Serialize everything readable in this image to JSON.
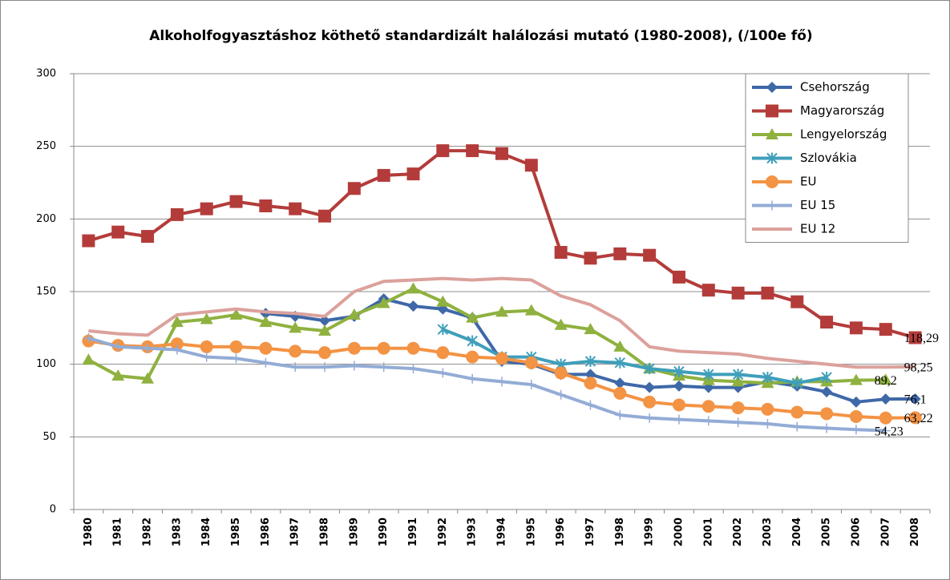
{
  "chart_data": {
    "type": "line",
    "title": "Alkoholfogyasztáshoz köthető standardizált halálozási mutató (1980-2008), (/100e fő)",
    "categories": [
      "1980",
      "1981",
      "1982",
      "1983",
      "1984",
      "1985",
      "1986",
      "1987",
      "1988",
      "1989",
      "1990",
      "1991",
      "1992",
      "1993",
      "1994",
      "1995",
      "1996",
      "1997",
      "1998",
      "1999",
      "2000",
      "2001",
      "2002",
      "2003",
      "2004",
      "2005",
      "2006",
      "2007",
      "2008"
    ],
    "ylim": [
      0,
      300
    ],
    "yticks": [
      0,
      50,
      100,
      150,
      200,
      250,
      300
    ],
    "grid": true,
    "legend": "top-right",
    "series": [
      {
        "name": "Csehország",
        "color": "#3e68a8",
        "marker": "diamond",
        "values": [
          null,
          null,
          null,
          null,
          null,
          null,
          135,
          133,
          130,
          133,
          145,
          140,
          138,
          132,
          102,
          100,
          93,
          93,
          87,
          84,
          85,
          84,
          84,
          88,
          85,
          81,
          74,
          76,
          76.1
        ],
        "value_labels": [
          null,
          null,
          null,
          null,
          null,
          null,
          null,
          null,
          null,
          null,
          null,
          null,
          null,
          null,
          null,
          null,
          null,
          null,
          null,
          null,
          null,
          null,
          null,
          null,
          null,
          null,
          null,
          null,
          "76,1"
        ]
      },
      {
        "name": "Magyarország",
        "color": "#b33c3a",
        "marker": "square",
        "values": [
          185,
          191,
          188,
          203,
          207,
          212,
          209,
          207,
          202,
          221,
          230,
          231,
          247,
          247,
          245,
          237,
          177,
          173,
          176,
          175,
          160,
          151,
          149,
          149,
          143,
          129,
          125,
          124,
          118.29
        ],
        "value_labels": [
          null,
          null,
          null,
          null,
          null,
          null,
          null,
          null,
          null,
          null,
          null,
          null,
          null,
          null,
          null,
          null,
          null,
          null,
          null,
          null,
          null,
          null,
          null,
          null,
          null,
          null,
          null,
          null,
          "118,29"
        ]
      },
      {
        "name": "Lengyelország",
        "color": "#8fb13f",
        "marker": "triangle",
        "values": [
          103,
          92,
          90,
          129,
          131,
          134,
          129,
          125,
          123,
          134,
          142,
          152,
          143,
          132,
          136,
          137,
          127,
          124,
          112,
          97,
          92,
          89,
          88,
          87,
          88,
          88,
          89,
          89.2,
          null
        ],
        "value_labels": [
          null,
          null,
          null,
          null,
          null,
          null,
          null,
          null,
          null,
          null,
          null,
          null,
          null,
          null,
          null,
          null,
          null,
          null,
          null,
          null,
          null,
          null,
          null,
          null,
          null,
          null,
          null,
          "89,2",
          null
        ]
      },
      {
        "name": "Szlovákia",
        "color": "#3f9fba",
        "marker": "asterisk",
        "values": [
          null,
          null,
          null,
          null,
          null,
          null,
          null,
          null,
          null,
          null,
          null,
          null,
          124,
          116,
          105,
          105,
          100,
          102,
          101,
          97,
          95,
          93,
          93,
          91,
          87,
          91,
          null,
          null,
          null
        ]
      },
      {
        "name": "EU",
        "color": "#f39344",
        "marker": "circle",
        "values": [
          116,
          113,
          112,
          114,
          112,
          112,
          111,
          109,
          108,
          111,
          111,
          111,
          108,
          105,
          104,
          101,
          94,
          87,
          80,
          74,
          72,
          71,
          70,
          69,
          67,
          66,
          64,
          63,
          63.22
        ],
        "value_labels": [
          null,
          null,
          null,
          null,
          null,
          null,
          null,
          null,
          null,
          null,
          null,
          null,
          null,
          null,
          null,
          null,
          null,
          null,
          null,
          null,
          null,
          null,
          null,
          null,
          null,
          null,
          null,
          null,
          "63,22"
        ]
      },
      {
        "name": "EU 15",
        "color": "#93acd6",
        "marker": "plus",
        "values": [
          118,
          112,
          111,
          110,
          105,
          104,
          101,
          98,
          98,
          99,
          98,
          97,
          94,
          90,
          88,
          86,
          79,
          72,
          65,
          63,
          62,
          61,
          60,
          59,
          57,
          56,
          55,
          54.23,
          null
        ],
        "value_labels": [
          null,
          null,
          null,
          null,
          null,
          null,
          null,
          null,
          null,
          null,
          null,
          null,
          null,
          null,
          null,
          null,
          null,
          null,
          null,
          null,
          null,
          null,
          null,
          null,
          null,
          null,
          null,
          "54,23",
          null
        ]
      },
      {
        "name": "EU 12",
        "color": "#dca19c",
        "marker": "none",
        "values": [
          123,
          121,
          120,
          134,
          136,
          138,
          136,
          135,
          133,
          150,
          157,
          158,
          159,
          158,
          159,
          158,
          147,
          141,
          130,
          112,
          109,
          108,
          107,
          104,
          102,
          100,
          98,
          98,
          98.25
        ],
        "value_labels": [
          null,
          null,
          null,
          null,
          null,
          null,
          null,
          null,
          null,
          null,
          null,
          null,
          null,
          null,
          null,
          null,
          null,
          null,
          null,
          null,
          null,
          null,
          null,
          null,
          null,
          null,
          null,
          null,
          "98,25"
        ]
      }
    ]
  }
}
